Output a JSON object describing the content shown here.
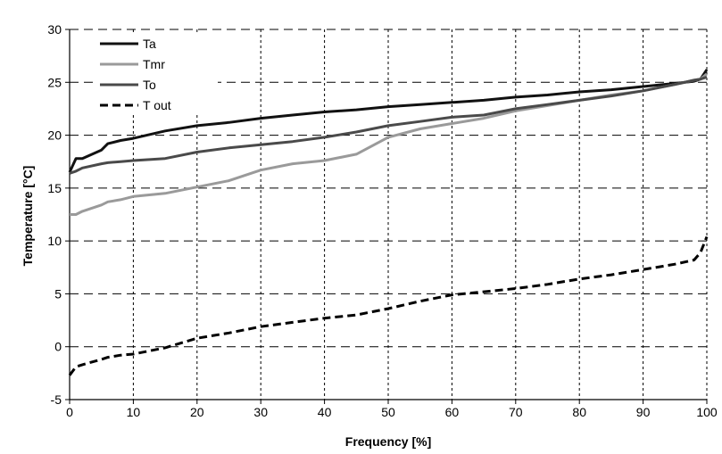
{
  "chart_data": {
    "type": "line",
    "title": "",
    "xlabel": "Frequency [%]",
    "ylabel": "Temperature [°C]",
    "xlim": [
      0,
      100
    ],
    "ylim": [
      -5,
      30
    ],
    "x_ticks": [
      0,
      10,
      20,
      30,
      40,
      50,
      60,
      70,
      80,
      90,
      100
    ],
    "y_ticks": [
      -5,
      0,
      5,
      10,
      15,
      20,
      25,
      30
    ],
    "grid": {
      "vertical": "dotted",
      "horizontal": "dashed"
    },
    "legend_position": "top-left",
    "x": [
      0,
      1,
      2,
      5,
      6,
      8,
      10,
      15,
      20,
      25,
      30,
      35,
      40,
      45,
      50,
      55,
      60,
      65,
      70,
      75,
      80,
      85,
      90,
      95,
      98,
      99,
      100
    ],
    "series": [
      {
        "name": "Ta",
        "color": "#111111",
        "style": "solid",
        "values": [
          16.5,
          17.8,
          17.8,
          18.6,
          19.2,
          19.5,
          19.7,
          20.4,
          20.9,
          21.2,
          21.6,
          21.9,
          22.2,
          22.4,
          22.7,
          22.9,
          23.1,
          23.3,
          23.6,
          23.8,
          24.1,
          24.3,
          24.6,
          24.9,
          25.1,
          25.3,
          26.2
        ]
      },
      {
        "name": "Tmr",
        "color": "#9a9a9a",
        "style": "solid",
        "values": [
          12.5,
          12.5,
          12.8,
          13.4,
          13.7,
          13.9,
          14.2,
          14.5,
          15.1,
          15.7,
          16.7,
          17.3,
          17.6,
          18.2,
          19.8,
          20.6,
          21.1,
          21.6,
          22.3,
          22.8,
          23.3,
          23.8,
          24.2,
          24.8,
          25.2,
          25.3,
          25.8
        ]
      },
      {
        "name": "To",
        "color": "#4a4a4a",
        "style": "solid",
        "values": [
          16.4,
          16.6,
          16.9,
          17.3,
          17.4,
          17.5,
          17.6,
          17.8,
          18.4,
          18.8,
          19.1,
          19.4,
          19.8,
          20.3,
          20.9,
          21.3,
          21.7,
          21.9,
          22.5,
          22.9,
          23.3,
          23.7,
          24.2,
          24.8,
          25.2,
          25.3,
          25.5
        ]
      },
      {
        "name": "T out",
        "color": "#000000",
        "style": "dashed",
        "values": [
          -2.7,
          -1.9,
          -1.7,
          -1.2,
          -1.0,
          -0.8,
          -0.7,
          -0.1,
          0.8,
          1.3,
          1.9,
          2.3,
          2.7,
          3.0,
          3.6,
          4.3,
          4.9,
          5.2,
          5.5,
          5.9,
          6.4,
          6.8,
          7.3,
          7.8,
          8.2,
          8.9,
          10.4
        ]
      }
    ]
  }
}
